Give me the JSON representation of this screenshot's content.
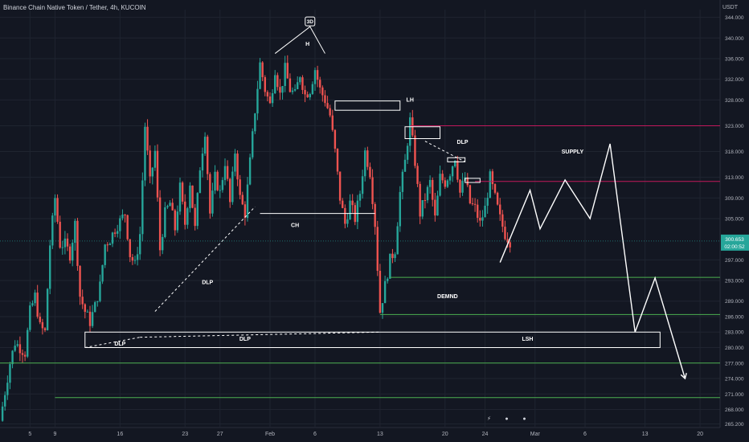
{
  "header": {
    "symbol_line": "Binance Chain Native Token / Tether, 4h, KUCOIN",
    "currency": "USDT"
  },
  "colors": {
    "background": "#131722",
    "grid": "#1f2430",
    "up": "#26a69a",
    "down": "#ef5350",
    "axis_text": "#b2b5be",
    "annotation": "#ffffff",
    "supply_line": "#c2185b",
    "demand_line": "#4caf50",
    "price_badge": "#26a69a"
  },
  "events": [
    {
      "name": "lightning-icon",
      "color": "#9c27b0",
      "symbol": "⚡"
    },
    {
      "name": "us-flag-icon",
      "color": "#e53935",
      "symbol": "●"
    },
    {
      "name": "us-flag-icon",
      "color": "#e53935",
      "symbol": "●"
    }
  ],
  "chart_data": {
    "type": "candlestick",
    "y_ticks": [
      "344.000",
      "340.000",
      "336.000",
      "332.000",
      "328.000",
      "323.000",
      "318.000",
      "313.000",
      "309.000",
      "305.000",
      "297.000",
      "293.000",
      "289.000",
      "286.000",
      "283.000",
      "280.000",
      "277.000",
      "274.000",
      "271.000",
      "268.000",
      "265.200"
    ],
    "x_ticks": [
      "5",
      "9",
      "16",
      "23",
      "27",
      "Feb",
      "6",
      "13",
      "20",
      "24",
      "Mar",
      "6",
      "13",
      "20"
    ],
    "last_price": "300.653",
    "countdown": "02:00:52",
    "ylim": [
      264.5,
      345.5
    ],
    "xlim": [
      0,
      144
    ],
    "candle_path": [
      [
        0,
        265.8
      ],
      [
        2,
        277
      ],
      [
        3,
        281
      ],
      [
        5,
        279
      ],
      [
        6,
        287
      ],
      [
        7,
        290
      ],
      [
        8,
        284
      ],
      [
        9,
        283
      ],
      [
        10,
        300
      ],
      [
        11,
        309
      ],
      [
        12,
        300
      ],
      [
        13,
        300
      ],
      [
        14,
        298
      ],
      [
        15,
        304
      ],
      [
        16,
        290
      ],
      [
        17,
        287
      ],
      [
        18,
        285
      ],
      [
        19,
        288
      ],
      [
        20,
        292
      ],
      [
        21,
        300
      ],
      [
        22,
        301
      ],
      [
        23,
        303
      ],
      [
        25,
        306
      ],
      [
        26,
        298
      ],
      [
        27,
        296
      ],
      [
        28,
        302
      ],
      [
        29,
        323
      ],
      [
        30,
        312
      ],
      [
        31,
        318
      ],
      [
        32,
        299
      ],
      [
        33,
        306
      ],
      [
        34,
        308
      ],
      [
        35,
        303
      ],
      [
        36,
        311
      ],
      [
        37,
        304
      ],
      [
        38,
        312
      ],
      [
        39,
        303
      ],
      [
        40,
        315
      ],
      [
        41,
        322
      ],
      [
        42,
        306
      ],
      [
        43,
        313
      ],
      [
        44,
        310
      ],
      [
        45,
        316
      ],
      [
        46,
        308
      ],
      [
        47,
        318
      ],
      [
        48,
        309
      ],
      [
        49,
        306
      ],
      [
        50,
        316
      ],
      [
        51,
        326
      ],
      [
        52,
        335
      ],
      [
        53,
        330
      ],
      [
        54,
        327
      ],
      [
        55,
        334
      ],
      [
        56,
        329
      ],
      [
        57,
        334
      ],
      [
        58,
        330
      ],
      [
        59,
        329
      ],
      [
        60,
        333
      ],
      [
        61,
        329
      ],
      [
        62,
        330
      ],
      [
        63,
        334
      ],
      [
        64,
        330
      ],
      [
        65,
        328
      ],
      [
        66,
        325
      ],
      [
        67,
        318
      ],
      [
        68,
        309
      ],
      [
        69,
        304
      ],
      [
        70,
        308
      ],
      [
        71,
        305
      ],
      [
        72,
        310
      ],
      [
        73,
        318
      ],
      [
        74,
        314
      ],
      [
        75,
        304
      ],
      [
        76,
        287
      ],
      [
        77,
        292
      ],
      [
        78,
        297
      ],
      [
        79,
        299
      ],
      [
        80,
        310
      ],
      [
        81,
        316
      ],
      [
        82,
        324
      ],
      [
        83,
        316
      ],
      [
        84,
        306
      ],
      [
        85,
        309
      ],
      [
        86,
        312
      ],
      [
        87,
        305
      ],
      [
        88,
        313
      ],
      [
        89,
        312
      ],
      [
        90,
        314
      ],
      [
        91,
        317
      ],
      [
        92,
        310
      ],
      [
        93,
        313
      ],
      [
        94,
        308
      ],
      [
        95,
        307
      ],
      [
        96,
        304
      ],
      [
        97,
        307
      ],
      [
        98,
        313
      ],
      [
        99,
        309
      ],
      [
        100,
        305
      ],
      [
        101,
        302
      ],
      [
        102,
        300.6
      ]
    ],
    "candle_seed": 7,
    "projection": [
      [
        100,
        296.5
      ],
      [
        106,
        310.5
      ],
      [
        108,
        303
      ],
      [
        113,
        312.5
      ],
      [
        118,
        305
      ],
      [
        122,
        319.5
      ],
      [
        127,
        283
      ],
      [
        131,
        293.5
      ],
      [
        137,
        274
      ]
    ],
    "h_lines": [
      {
        "y": 323.0,
        "x0": 82,
        "x1": 144,
        "kind": "supply"
      },
      {
        "y": 312.2,
        "x0": 95,
        "x1": 144,
        "kind": "supply"
      },
      {
        "y": 293.6,
        "x0": 78,
        "x1": 144,
        "kind": "demand"
      },
      {
        "y": 286.4,
        "x0": 76,
        "x1": 144,
        "kind": "demand"
      },
      {
        "y": 277.0,
        "x0": 0,
        "x1": 144,
        "kind": "demand"
      },
      {
        "y": 270.3,
        "x0": 11,
        "x1": 144,
        "kind": "demand"
      },
      {
        "y": 306.0,
        "x0": 52,
        "x1": 75,
        "kind": "white"
      }
    ],
    "boxes": [
      {
        "x0": 67,
        "x1": 80,
        "y0": 326.0,
        "y1": 327.8
      },
      {
        "x0": 81,
        "x1": 88,
        "y0": 320.5,
        "y1": 322.8
      },
      {
        "x0": 89.5,
        "x1": 93,
        "y0": 316.0,
        "y1": 316.8
      },
      {
        "x0": 93,
        "x1": 96,
        "y0": 312.0,
        "y1": 312.8
      },
      {
        "x0": 17,
        "x1": 132,
        "y0": 280.0,
        "y1": 283.0
      }
    ],
    "peak": {
      "points": [
        [
          55,
          337
        ],
        [
          62,
          342.2
        ],
        [
          65,
          337
        ]
      ],
      "tag": "3D"
    },
    "dashed": [
      [
        [
          31,
          287
        ],
        [
          51,
          307.3
        ]
      ],
      [
        [
          17,
          280
        ],
        [
          28,
          282
        ]
      ],
      [
        [
          28,
          282
        ],
        [
          76,
          283
        ]
      ],
      [
        [
          85,
          320
        ],
        [
          93,
          316
        ]
      ]
    ],
    "labels": [
      {
        "text": "H",
        "x": 61.5,
        "y": 338.5
      },
      {
        "text": "LH",
        "x": 82,
        "y": 327.7
      },
      {
        "text": "DLP",
        "x": 92.5,
        "y": 319.5
      },
      {
        "text": "SUPPLY",
        "x": 114.5,
        "y": 317.6
      },
      {
        "text": "CH",
        "x": 59,
        "y": 303.4
      },
      {
        "text": "DLP",
        "x": 41.5,
        "y": 292.3
      },
      {
        "text": "DEMND",
        "x": 89.5,
        "y": 289.6
      },
      {
        "text": "LSH",
        "x": 105.5,
        "y": 281.3
      },
      {
        "text": "DLP",
        "x": 49,
        "y": 281.3
      },
      {
        "text": "DLP",
        "x": 24,
        "y": 280.4
      }
    ]
  }
}
